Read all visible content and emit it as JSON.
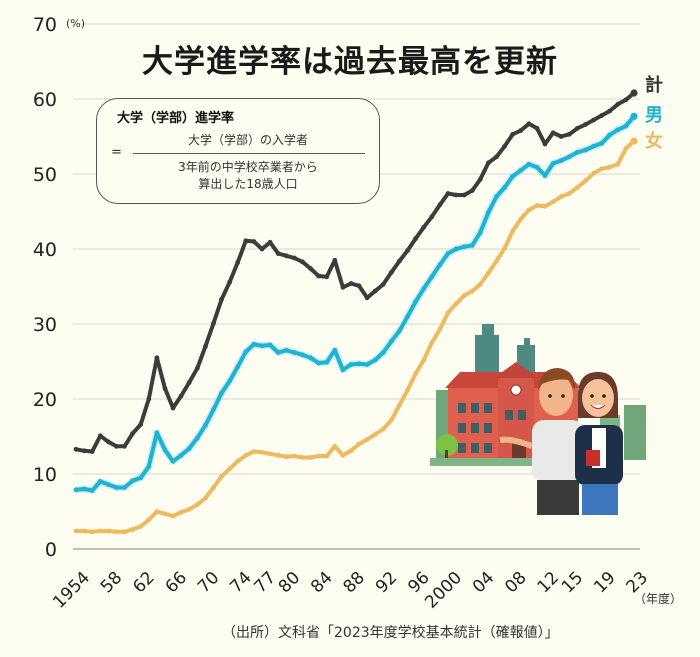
{
  "title": "大学進学率は過去最高を更新",
  "formula": {
    "heading": "大学（学部）進学率",
    "equals": "=",
    "numerator": "大学（学部）の入学者",
    "denominator_line1": "3年前の中学校卒業者から",
    "denominator_line2": "算出した18歳人口"
  },
  "axis": {
    "y_unit": "(%)",
    "x_unit": "（年度）"
  },
  "legend": {
    "total": "計",
    "male": "男",
    "female": "女"
  },
  "source": "（出所）文科省「2023年度学校基本統計（確報値）」",
  "colors": {
    "background": "#fdfdf2",
    "total": "#3c3c3c",
    "male": "#1fb3d1",
    "female": "#efb95f",
    "grid": "#d6d6cc"
  },
  "chart_data": {
    "type": "line",
    "title": "大学進学率は過去最高を更新",
    "xlabel": "（年度）",
    "ylabel": "(%)",
    "ylim": [
      0,
      70
    ],
    "yticks": [
      0,
      10,
      20,
      30,
      40,
      50,
      60,
      70
    ],
    "xtick_labels": [
      "1954",
      "58",
      "62",
      "66",
      "70",
      "74",
      "77",
      "80",
      "84",
      "88",
      "92",
      "96",
      "2000",
      "04",
      "08",
      "12",
      "15",
      "19",
      "23"
    ],
    "xtick_years": [
      1954,
      1958,
      1962,
      1966,
      1970,
      1974,
      1977,
      1980,
      1984,
      1988,
      1992,
      1996,
      2000,
      2004,
      2008,
      2012,
      2015,
      2019,
      2023
    ],
    "grid": true,
    "legend_position": "right-end-labels",
    "x": [
      1954,
      1955,
      1956,
      1957,
      1958,
      1959,
      1960,
      1961,
      1962,
      1963,
      1964,
      1965,
      1966,
      1967,
      1968,
      1969,
      1970,
      1971,
      1972,
      1973,
      1974,
      1975,
      1976,
      1977,
      1978,
      1979,
      1980,
      1981,
      1982,
      1983,
      1984,
      1985,
      1986,
      1987,
      1988,
      1989,
      1990,
      1991,
      1992,
      1993,
      1994,
      1995,
      1996,
      1997,
      1998,
      1999,
      2000,
      2001,
      2002,
      2003,
      2004,
      2005,
      2006,
      2007,
      2008,
      2009,
      2010,
      2011,
      2012,
      2013,
      2014,
      2015,
      2016,
      2017,
      2018,
      2019,
      2020,
      2021,
      2022,
      2023
    ],
    "series": [
      {
        "name": "計",
        "values": [
          13.3,
          13.1,
          13.0,
          15.1,
          14.3,
          13.7,
          13.7,
          15.4,
          16.6,
          20.0,
          25.5,
          21.4,
          18.8,
          20.4,
          22.2,
          24.1,
          27.0,
          30.1,
          33.3,
          35.6,
          38.2,
          41.1,
          41.0,
          40.0,
          40.9,
          39.4,
          39.1,
          38.8,
          38.3,
          37.4,
          36.4,
          36.3,
          38.5,
          34.9,
          35.4,
          35.1,
          33.5,
          34.4,
          35.3,
          36.9,
          38.4,
          39.8,
          41.4,
          42.9,
          44.3,
          45.9,
          47.4,
          47.2,
          47.2,
          47.8,
          49.3,
          51.5,
          52.3,
          53.7,
          55.3,
          55.8,
          56.7,
          56.1,
          54.0,
          55.5,
          55.0,
          55.3,
          56.1,
          56.6,
          57.2,
          57.8,
          58.4,
          59.3,
          59.9,
          60.8
        ]
      },
      {
        "name": "男",
        "values": [
          7.9,
          8.0,
          7.8,
          9.0,
          8.6,
          8.2,
          8.2,
          9.1,
          9.5,
          11.0,
          15.5,
          13.2,
          11.7,
          12.5,
          13.4,
          14.8,
          16.5,
          18.6,
          20.8,
          22.4,
          24.3,
          26.3,
          27.3,
          27.1,
          27.2,
          26.2,
          26.5,
          26.2,
          25.9,
          25.5,
          24.8,
          24.9,
          26.5,
          23.9,
          24.6,
          24.7,
          24.6,
          25.2,
          26.2,
          27.7,
          29.1,
          31.0,
          33.0,
          34.7,
          36.3,
          37.9,
          39.4,
          40.0,
          40.3,
          40.5,
          42.2,
          44.9,
          47.0,
          48.2,
          49.7,
          50.5,
          51.3,
          50.9,
          49.8,
          51.4,
          51.8,
          52.3,
          52.9,
          53.2,
          53.7,
          54.1,
          55.2,
          55.9,
          56.4,
          57.7
        ]
      },
      {
        "name": "女",
        "values": [
          2.4,
          2.4,
          2.3,
          2.4,
          2.4,
          2.3,
          2.3,
          2.6,
          3.0,
          3.9,
          5.0,
          4.7,
          4.4,
          4.9,
          5.3,
          5.9,
          6.8,
          8.2,
          9.7,
          10.7,
          11.7,
          12.5,
          13.0,
          12.9,
          12.7,
          12.5,
          12.3,
          12.4,
          12.2,
          12.2,
          12.4,
          12.4,
          13.7,
          12.5,
          13.1,
          14.0,
          14.6,
          15.3,
          16.0,
          17.2,
          19.2,
          21.2,
          23.4,
          25.2,
          27.5,
          29.3,
          31.5,
          32.7,
          33.8,
          34.4,
          35.3,
          36.8,
          38.4,
          40.1,
          42.4,
          44.0,
          45.2,
          45.8,
          45.7,
          46.3,
          47.0,
          47.4,
          48.2,
          49.1,
          50.1,
          50.7,
          50.9,
          51.3,
          53.4,
          54.4
        ]
      }
    ]
  }
}
